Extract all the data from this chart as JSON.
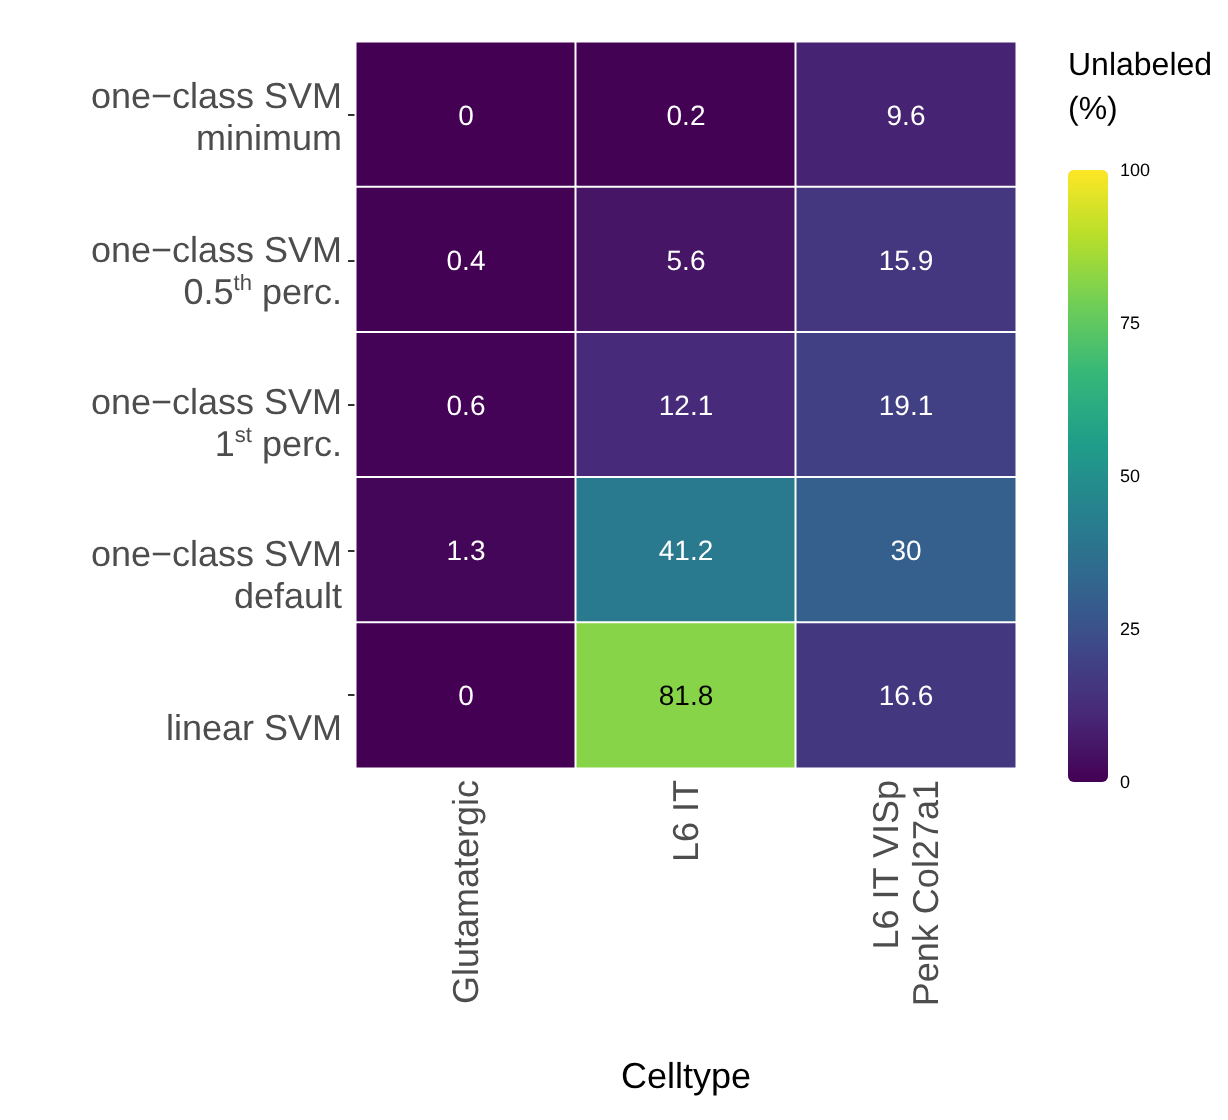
{
  "chart_data": {
    "type": "heatmap",
    "xlabel": "Celltype",
    "clabel": "Unlabeled\n(%)",
    "categories": [
      "Glutamatergic",
      "L6 IT",
      "L6 IT VISp\nPenk Col27a1"
    ],
    "y_categories": [
      "one−class SVM\nminimum",
      "one−class SVM\n0.5$^{th}$ perc.",
      "one−class SVM\n1$^{st}$ perc.",
      "one−class SVM\ndefault",
      "linear SVM"
    ],
    "cells": [
      [
        0,
        0.2,
        9.6
      ],
      [
        0.4,
        5.6,
        15.9
      ],
      [
        0.6,
        12.1,
        19.1
      ],
      [
        1.3,
        41.2,
        30
      ],
      [
        0,
        81.8,
        16.6
      ]
    ],
    "clim": [
      0,
      100
    ],
    "cticks": [
      0,
      25,
      50,
      75,
      100
    ],
    "data_labels": true
  }
}
